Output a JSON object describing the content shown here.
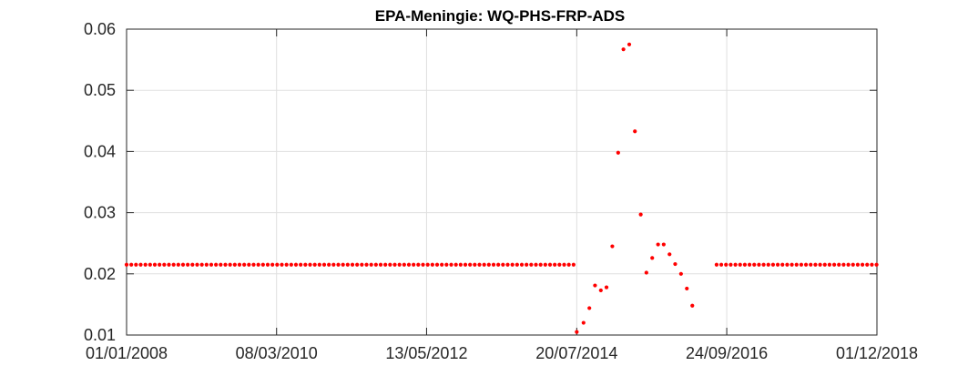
{
  "chart_data": {
    "type": "scatter",
    "title": "EPA-Meningie: WQ-PHS-FRP-ADS",
    "xlabel": "",
    "ylabel": "",
    "x_axis_type": "date",
    "xlim": [
      "2008-01-01",
      "2018-12-01"
    ],
    "ylim": [
      0.01,
      0.06
    ],
    "x_ticks": [
      {
        "date": "2008-01-01",
        "label": "01/01/2008"
      },
      {
        "date": "2010-03-08",
        "label": "08/03/2010"
      },
      {
        "date": "2012-05-13",
        "label": "13/05/2012"
      },
      {
        "date": "2014-07-20",
        "label": "20/07/2014"
      },
      {
        "date": "2016-09-24",
        "label": "24/09/2016"
      },
      {
        "date": "2018-12-01",
        "label": "01/12/2018"
      }
    ],
    "y_ticks": [
      {
        "value": 0.01,
        "label": "0.01"
      },
      {
        "value": 0.02,
        "label": "0.02"
      },
      {
        "value": 0.03,
        "label": "0.03"
      },
      {
        "value": 0.04,
        "label": "0.04"
      },
      {
        "value": 0.05,
        "label": "0.05"
      },
      {
        "value": 0.06,
        "label": "0.06"
      }
    ],
    "grid": true,
    "marker_color": "#ff0000",
    "series": [
      {
        "constant_segments": [
          {
            "start": "2008-01-01",
            "end": "2014-07-05",
            "y": 0.0215
          },
          {
            "start": "2016-08-01",
            "end": "2018-12-01",
            "y": 0.0215
          }
        ],
        "points": [
          {
            "x": "2014-07-20",
            "y": 0.0105
          },
          {
            "x": "2014-08-25",
            "y": 0.012
          },
          {
            "x": "2014-09-25",
            "y": 0.0144
          },
          {
            "x": "2014-10-25",
            "y": 0.0181
          },
          {
            "x": "2014-11-25",
            "y": 0.0173
          },
          {
            "x": "2014-12-25",
            "y": 0.0178
          },
          {
            "x": "2015-01-25",
            "y": 0.0245
          },
          {
            "x": "2015-02-25",
            "y": 0.0398
          },
          {
            "x": "2015-03-25",
            "y": 0.0567
          },
          {
            "x": "2015-04-25",
            "y": 0.0575
          },
          {
            "x": "2015-05-25",
            "y": 0.0433
          },
          {
            "x": "2015-06-25",
            "y": 0.0297
          },
          {
            "x": "2015-07-25",
            "y": 0.0202
          },
          {
            "x": "2015-08-25",
            "y": 0.0226
          },
          {
            "x": "2015-09-25",
            "y": 0.0248
          },
          {
            "x": "2015-10-25",
            "y": 0.0248
          },
          {
            "x": "2015-11-25",
            "y": 0.0232
          },
          {
            "x": "2015-12-25",
            "y": 0.0216
          },
          {
            "x": "2016-01-25",
            "y": 0.02
          },
          {
            "x": "2016-02-25",
            "y": 0.0176
          },
          {
            "x": "2016-03-25",
            "y": 0.0148
          }
        ]
      }
    ]
  }
}
